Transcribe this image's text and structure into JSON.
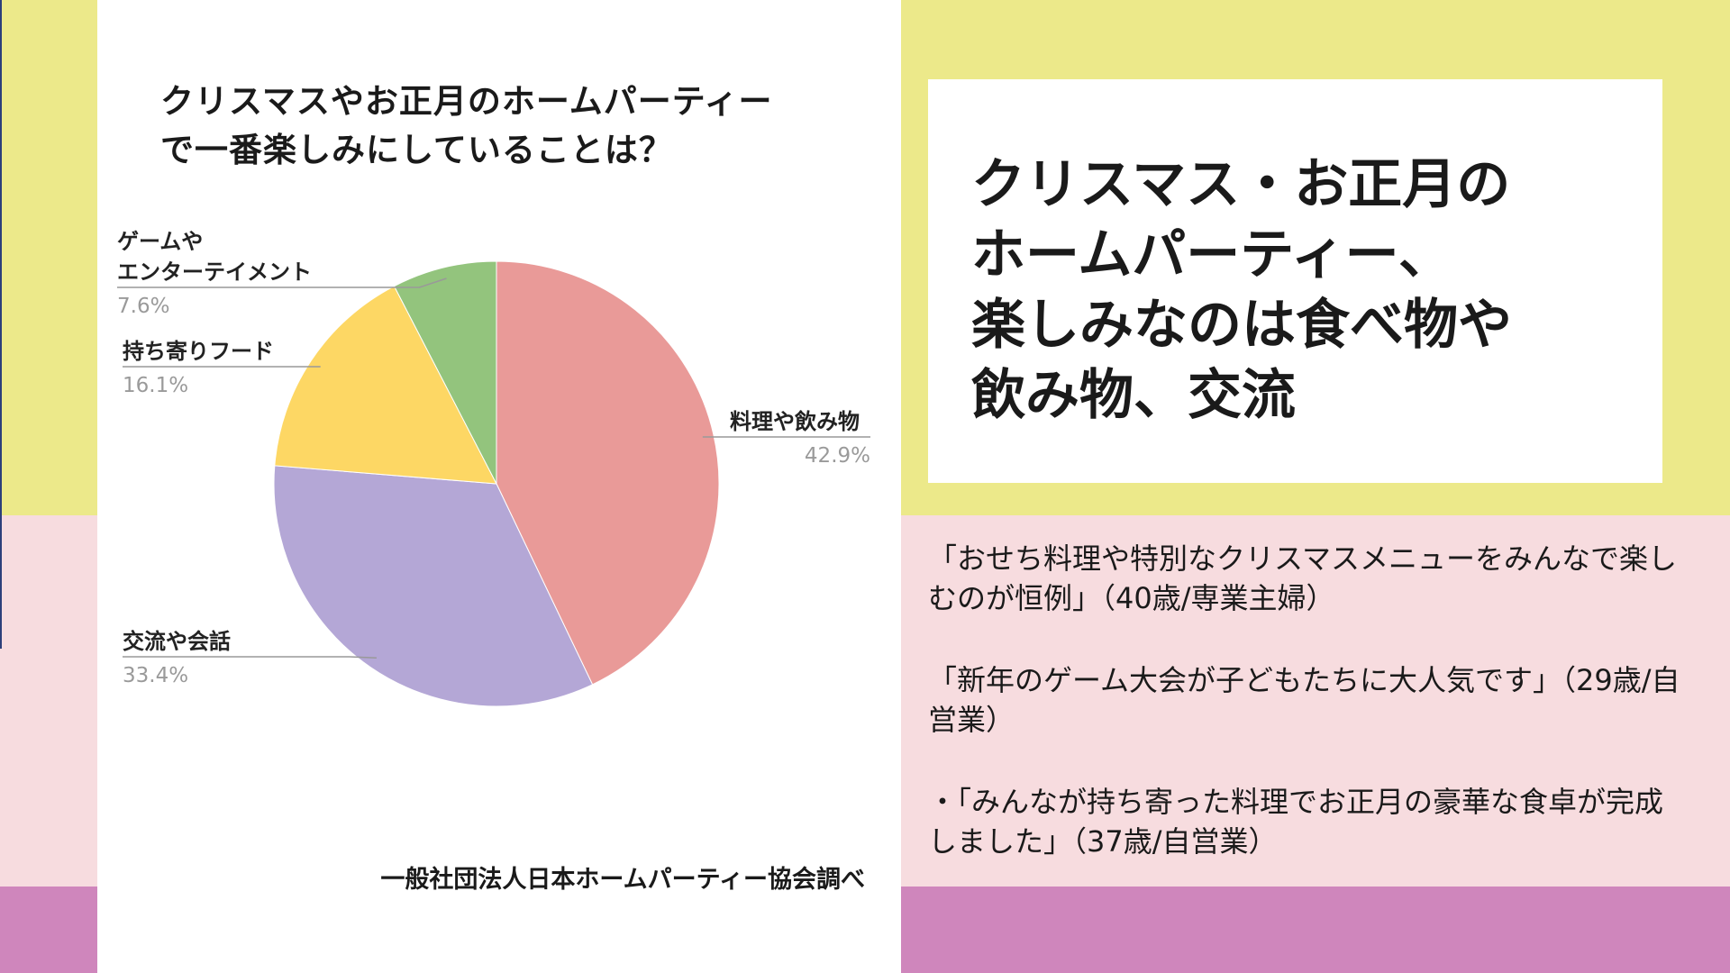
{
  "colors": {
    "band_yellow": "#ece98a",
    "band_pink": "#f7dcdf",
    "band_purple": "#cf86bc"
  },
  "chart_title_lines": [
    "クリスマスやお正月のホームパーティー",
    "で一番楽しみにしていることは？"
  ],
  "source": "一般社団法人日本ホームパーティー協会調べ",
  "headline": "クリスマス・お正月の\nホームパーティー、\n楽しみなのは食べ物や\n飲み物、交流",
  "quotes": [
    "「おせち料理や特別なクリスマスメニューをみんなで楽しむのが恒例」（40歳/専業主婦）",
    "「新年のゲーム大会が子どもたちに大人気です」（29歳/自営業）",
    "・「みんなが持ち寄った料理でお正月の豪華な食卓が完成しました」（37歳/自営業）"
  ],
  "chart_data": {
    "type": "pie",
    "title": "クリスマスやお正月のホームパーティーで一番楽しみにしていることは？",
    "slices": [
      {
        "label": "料理や飲み物",
        "value": 42.9,
        "display": "42.9%",
        "color": "#e99a98"
      },
      {
        "label": "交流や会話",
        "value": 33.4,
        "display": "33.4%",
        "color": "#b4a7d6"
      },
      {
        "label": "持ち寄りフード",
        "value": 16.1,
        "display": "16.1%",
        "color": "#fdd764"
      },
      {
        "label": "ゲームや\nエンターテイメント",
        "value": 7.6,
        "display": "7.6%",
        "color": "#93c47d"
      }
    ],
    "legend": "none",
    "label_style": "callout"
  }
}
